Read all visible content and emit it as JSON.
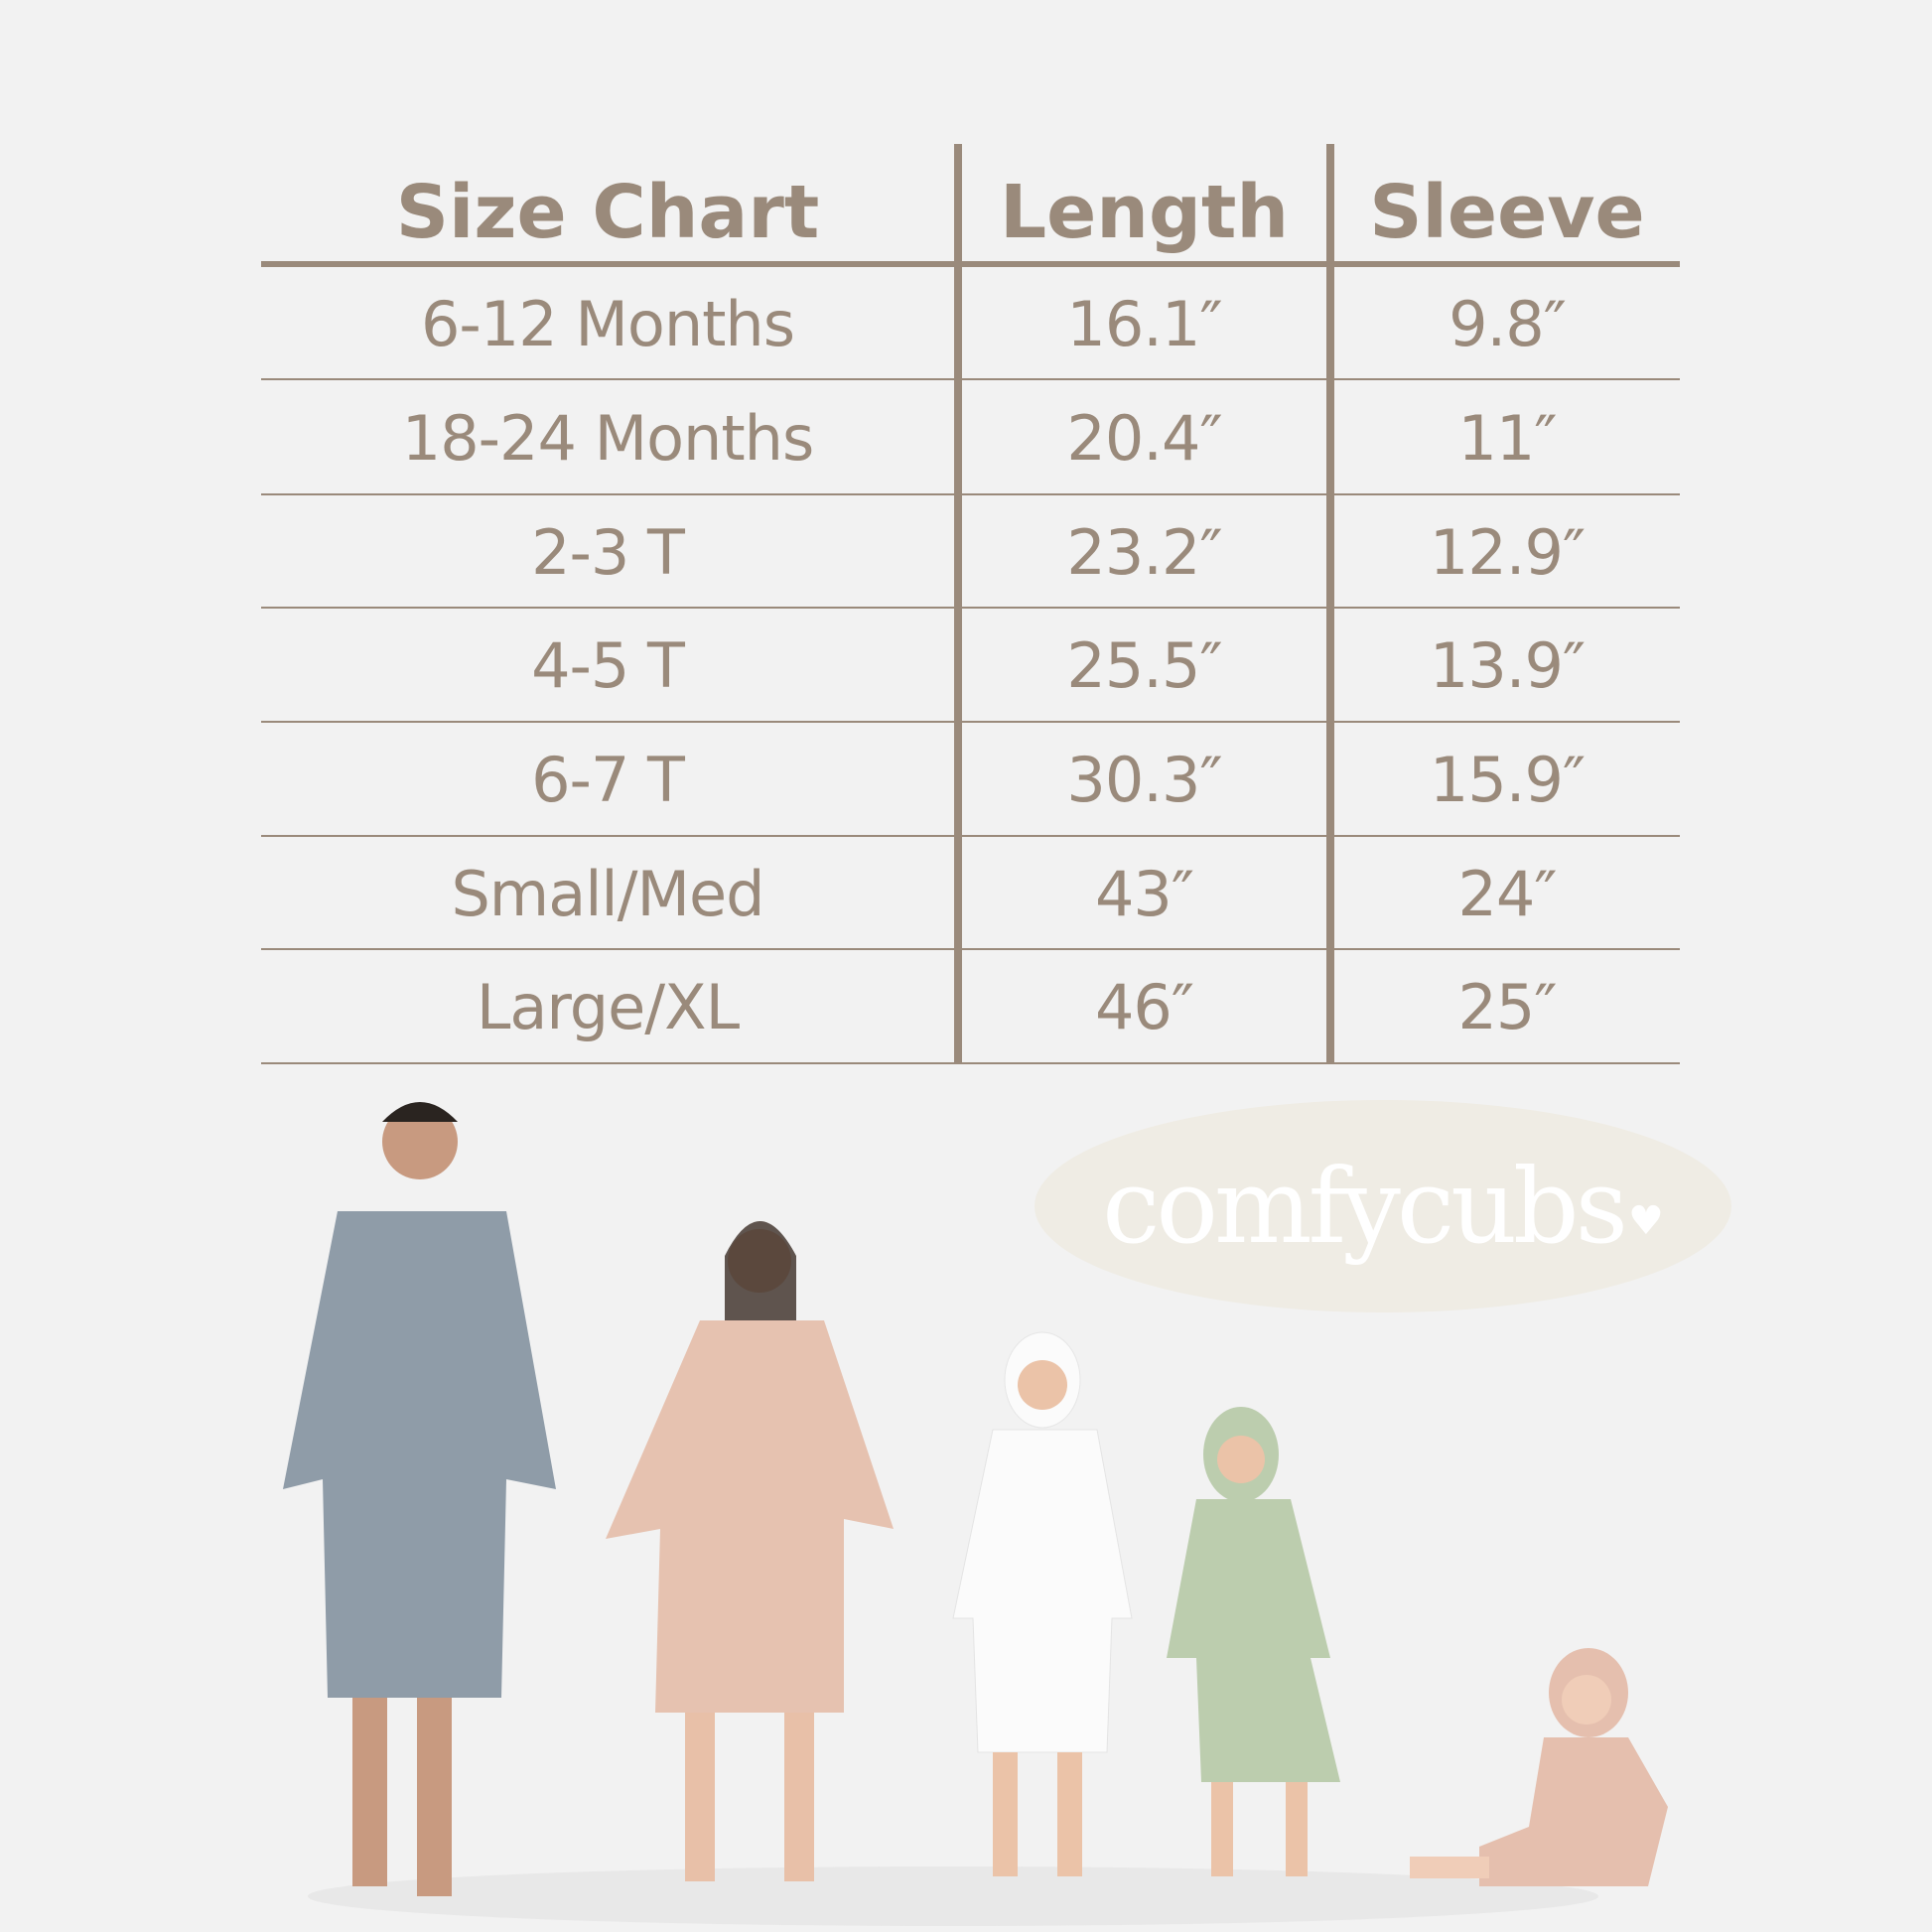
{
  "size_chart": {
    "headers": [
      "Size Chart",
      "Length",
      "Sleeve"
    ],
    "rows": [
      [
        "6-12 Months",
        "16.1″",
        "9.8″"
      ],
      [
        "18-24 Months",
        "20.4″",
        "11″"
      ],
      [
        "2-3 T",
        "23.2″",
        "12.9″"
      ],
      [
        "4-5 T",
        "25.5″",
        "13.9″"
      ],
      [
        "6-7 T",
        "30.3″",
        "15.9″"
      ],
      [
        "Small/Med",
        "43″",
        "24″"
      ],
      [
        "Large/XL",
        "46″",
        "25″"
      ]
    ]
  },
  "brand": {
    "logo_text": "comfycubs"
  },
  "colors": {
    "text": "#9a8a7b",
    "background": "#f2f2f2",
    "robes": [
      "#8f9ca8",
      "#e6c2b0",
      "#fbfbfb",
      "#bccdae",
      "#e5bfae"
    ]
  }
}
